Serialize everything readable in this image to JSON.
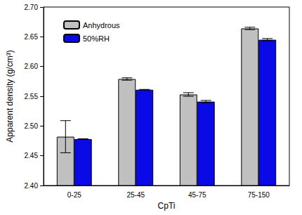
{
  "chart_data": {
    "type": "bar",
    "x_label": "CpTi",
    "y_label": "Apparent density (g/cm³)",
    "categories": [
      "0-25",
      "25-45",
      "45-75",
      "75-150"
    ],
    "series": [
      {
        "name": "Anhydrous",
        "color": "#c0c0c0",
        "values": [
          2.482,
          2.579,
          2.553,
          2.664
        ],
        "errors": [
          0.027,
          0.002,
          0.003,
          0.002
        ]
      },
      {
        "name": "50%RH",
        "color": "#0a0ae6",
        "values": [
          2.478,
          2.561,
          2.541,
          2.645
        ],
        "errors": [
          0.0005,
          0.0005,
          0.002,
          0.002
        ]
      }
    ],
    "ylim": [
      2.4,
      2.7
    ],
    "yticks": [
      {
        "value": 2.4,
        "label": "2.40"
      },
      {
        "value": 2.45,
        "label": "2.45"
      },
      {
        "value": 2.5,
        "label": "2.50"
      },
      {
        "value": 2.55,
        "label": "2.55"
      },
      {
        "value": 2.6,
        "label": "2.60"
      },
      {
        "value": 2.65,
        "label": "2.65"
      },
      {
        "value": 2.7,
        "label": "2.70"
      }
    ],
    "legend": "upper left",
    "grid": false
  }
}
